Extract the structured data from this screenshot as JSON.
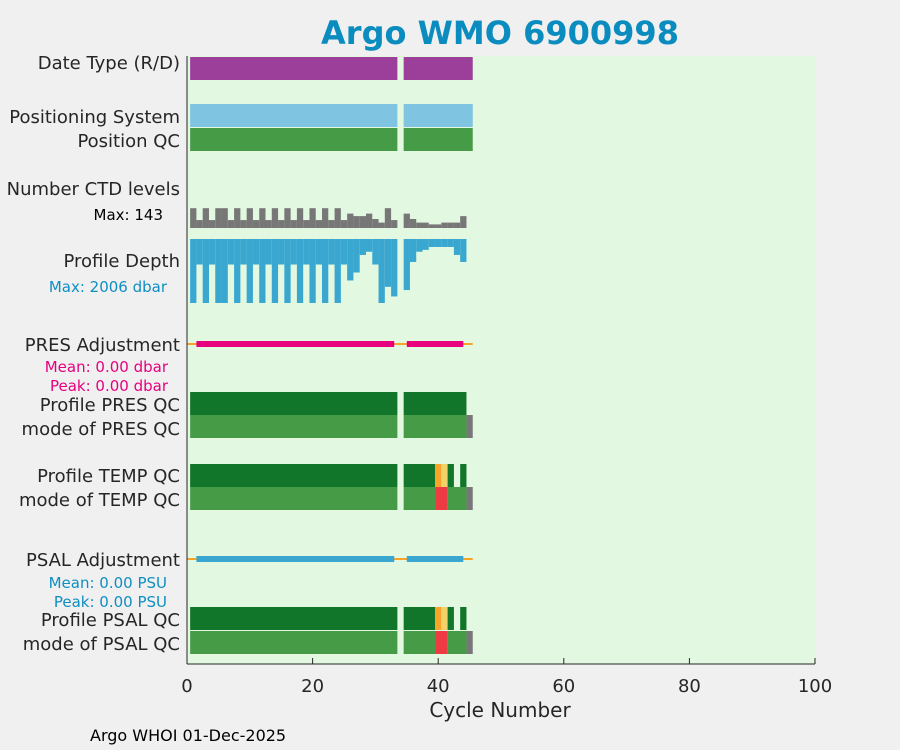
{
  "chart_data": {
    "type": "bar",
    "title": "Argo WMO 6900998",
    "xlabel": "Cycle Number",
    "xlim": [
      0,
      100
    ],
    "xticks": [
      0,
      20,
      40,
      60,
      80,
      100
    ],
    "footer": "Argo WHOI 01-Dec-2025",
    "colors": {
      "plot_bg": "#e3f8e0",
      "title": "#0b8cbf",
      "purple": "#9b3f9b",
      "light_blue": "#7fc4e0",
      "good": "#469c46",
      "dark_green": "#117629",
      "grey": "#777777",
      "profile_blue": "#3aa7d1",
      "magenta": "#e6007e",
      "orange": "#f7a428",
      "yellow": "#f3d16b",
      "red": "#ee3a43",
      "stat_blue": "#0f8ec2"
    },
    "rows": {
      "date_type": {
        "label": "Date Type (R/D)"
      },
      "positioning": {
        "label": "Positioning System"
      },
      "position_qc": {
        "label": "Position QC"
      },
      "ctd_levels": {
        "label": "Number CTD levels",
        "note": "Max: 143"
      },
      "profile_depth": {
        "label": "Profile Depth",
        "note": "Max: 2006 dbar"
      },
      "pres_adj": {
        "label": "PRES Adjustment",
        "mean": "Mean: 0.00 dbar",
        "peak": "Peak: 0.00 dbar"
      },
      "pres_qc": {
        "label": "Profile PRES QC"
      },
      "pres_mode": {
        "label": "mode of PRES QC"
      },
      "temp_qc": {
        "label": "Profile TEMP QC"
      },
      "temp_mode": {
        "label": "mode of TEMP QC"
      },
      "psal_adj": {
        "label": "PSAL Adjustment",
        "mean": "Mean: 0.00 PSU",
        "peak": "Peak: 0.00 PSU"
      },
      "psal_qc": {
        "label": "Profile PSAL QC"
      },
      "psal_mode": {
        "label": "mode of PSAL QC"
      }
    },
    "series": {
      "date_type": [
        {
          "start": 0.5,
          "end": 33.5,
          "value": "D"
        },
        {
          "start": 34.5,
          "end": 45.5,
          "value": "D"
        }
      ],
      "positioning": [
        {
          "start": 0.5,
          "end": 33.5,
          "value": "GPS"
        },
        {
          "start": 34.5,
          "end": 45.5,
          "value": "GPS"
        }
      ],
      "position_qc": [
        {
          "start": 0.5,
          "end": 33.5,
          "qc": 1
        },
        {
          "start": 34.5,
          "end": 45.5,
          "qc": 1
        }
      ],
      "ctd_level_fractions": [
        [
          1,
          0.55
        ],
        [
          2,
          0.22
        ],
        [
          3,
          0.55
        ],
        [
          4,
          0.22
        ],
        [
          5,
          0.55
        ],
        [
          6,
          0.55
        ],
        [
          7,
          0.22
        ],
        [
          8,
          0.55
        ],
        [
          9,
          0.22
        ],
        [
          10,
          0.55
        ],
        [
          11,
          0.22
        ],
        [
          12,
          0.55
        ],
        [
          13,
          0.22
        ],
        [
          14,
          0.55
        ],
        [
          15,
          0.22
        ],
        [
          16,
          0.55
        ],
        [
          17,
          0.22
        ],
        [
          18,
          0.55
        ],
        [
          19,
          0.22
        ],
        [
          20,
          0.55
        ],
        [
          21,
          0.22
        ],
        [
          22,
          0.55
        ],
        [
          23,
          0.22
        ],
        [
          24,
          0.55
        ],
        [
          25,
          0.22
        ],
        [
          26,
          0.4
        ],
        [
          27,
          0.33
        ],
        [
          28,
          0.33
        ],
        [
          29,
          0.4
        ],
        [
          30,
          0.25
        ],
        [
          31,
          0.15
        ],
        [
          32,
          0.55
        ],
        [
          33,
          0.22
        ],
        [
          35,
          0.4
        ],
        [
          36,
          0.25
        ],
        [
          37,
          0.15
        ],
        [
          38,
          0.15
        ],
        [
          39,
          0.1
        ],
        [
          40,
          0.1
        ],
        [
          41,
          0.15
        ],
        [
          42,
          0.15
        ],
        [
          43,
          0.15
        ],
        [
          44,
          0.33
        ]
      ],
      "profile_depths_dbar": [
        [
          1,
          2006
        ],
        [
          2,
          800
        ],
        [
          3,
          2006
        ],
        [
          4,
          800
        ],
        [
          5,
          2006
        ],
        [
          6,
          2006
        ],
        [
          7,
          800
        ],
        [
          8,
          2006
        ],
        [
          9,
          800
        ],
        [
          10,
          2006
        ],
        [
          11,
          800
        ],
        [
          12,
          2006
        ],
        [
          13,
          800
        ],
        [
          14,
          2006
        ],
        [
          15,
          800
        ],
        [
          16,
          2006
        ],
        [
          17,
          800
        ],
        [
          18,
          2006
        ],
        [
          19,
          800
        ],
        [
          20,
          2006
        ],
        [
          21,
          800
        ],
        [
          22,
          2006
        ],
        [
          23,
          800
        ],
        [
          24,
          2006
        ],
        [
          25,
          800
        ],
        [
          26,
          1300
        ],
        [
          27,
          1050
        ],
        [
          28,
          500
        ],
        [
          29,
          400
        ],
        [
          30,
          800
        ],
        [
          31,
          2006
        ],
        [
          32,
          1500
        ],
        [
          33,
          1800
        ],
        [
          35,
          1600
        ],
        [
          36,
          720
        ],
        [
          37,
          400
        ],
        [
          38,
          340
        ],
        [
          39,
          250
        ],
        [
          40,
          250
        ],
        [
          41,
          250
        ],
        [
          42,
          250
        ],
        [
          43,
          500
        ],
        [
          44,
          720
        ]
      ],
      "pres_adj_segments": [
        [
          1.5,
          33
        ],
        [
          35,
          44
        ]
      ],
      "pres_adj_whisker": [
        0,
        45.5
      ],
      "psal_adj_segments": [
        [
          1.5,
          33
        ],
        [
          35,
          44
        ]
      ],
      "psal_adj_whisker": [
        0,
        45.5
      ],
      "pres_qc": [
        {
          "start": 0.5,
          "end": 33.5,
          "qc": "A"
        },
        {
          "start": 34.5,
          "end": 44.5,
          "qc": "A"
        }
      ],
      "pres_mode": [
        {
          "start": 0.5,
          "end": 33.5,
          "qc": 1
        },
        {
          "start": 34.5,
          "end": 44.5,
          "qc": 1
        },
        {
          "start": 44.5,
          "end": 45.5,
          "qc": "missing"
        }
      ],
      "temp_qc": [
        {
          "start": 0.5,
          "end": 33.5,
          "qc": "A"
        },
        {
          "start": 34.5,
          "end": 39.5,
          "qc": "A"
        },
        {
          "start": 39.5,
          "end": 40.5,
          "qc": "C"
        },
        {
          "start": 40.5,
          "end": 41.5,
          "qc": "D"
        },
        {
          "start": 41.5,
          "end": 42.5,
          "qc": "A"
        },
        {
          "start": 43.5,
          "end": 44.5,
          "qc": "A"
        }
      ],
      "temp_mode": [
        {
          "start": 0.5,
          "end": 33.5,
          "qc": 1
        },
        {
          "start": 34.5,
          "end": 39.5,
          "qc": 1
        },
        {
          "start": 39.5,
          "end": 41.5,
          "qc": 4
        },
        {
          "start": 41.5,
          "end": 44.5,
          "qc": 1
        },
        {
          "start": 44.5,
          "end": 45.5,
          "qc": "missing"
        }
      ],
      "psal_qc": [
        {
          "start": 0.5,
          "end": 33.5,
          "qc": "A"
        },
        {
          "start": 34.5,
          "end": 39.5,
          "qc": "A"
        },
        {
          "start": 39.5,
          "end": 40.5,
          "qc": "C"
        },
        {
          "start": 40.5,
          "end": 41.5,
          "qc": "D"
        },
        {
          "start": 41.5,
          "end": 42.5,
          "qc": "A"
        },
        {
          "start": 43.5,
          "end": 44.5,
          "qc": "A"
        }
      ],
      "psal_mode": [
        {
          "start": 0.5,
          "end": 33.5,
          "qc": 1
        },
        {
          "start": 34.5,
          "end": 39.5,
          "qc": 1
        },
        {
          "start": 39.5,
          "end": 41.5,
          "qc": 4
        },
        {
          "start": 41.5,
          "end": 44.5,
          "qc": 1
        },
        {
          "start": 44.5,
          "end": 45.5,
          "qc": "missing"
        }
      ]
    }
  }
}
